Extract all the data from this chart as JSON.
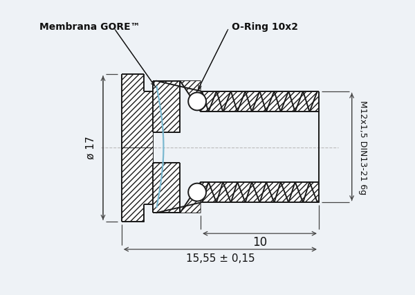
{
  "bg_color": "#eef2f6",
  "line_color": "#1a1a1a",
  "hatch_color": "#1a1a1a",
  "dim_color": "#444444",
  "dashed_color": "#bbbbbb",
  "membrane_color": "#7ab8d0",
  "label_gore": "Membrana GORE™",
  "label_oring": "O-Ring 10x2",
  "label_thread": "M12x1,5 DIN13-21 6g",
  "label_dia": "ø 17",
  "label_10": "10",
  "label_1555": "15,55 ± 0,15",
  "figsize": [
    6.0,
    4.26
  ],
  "dpi": 100
}
